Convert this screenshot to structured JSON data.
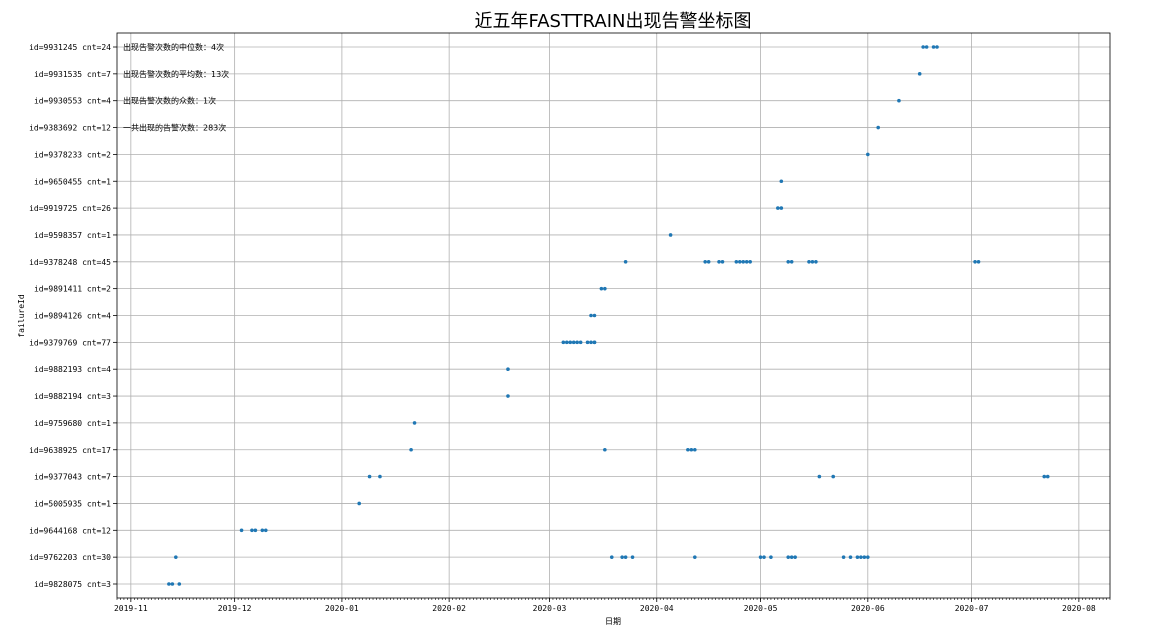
{
  "chart_data": {
    "type": "scatter",
    "title": "近五年FASTTRAIN出现告警坐标图",
    "xlabel": "日期",
    "ylabel": "failureId",
    "grid": true,
    "xlim": [
      "2019-10-28",
      "2020-08-10"
    ],
    "x_ticks": [
      "2019-11",
      "2019-12",
      "2020-01",
      "2020-02",
      "2020-03",
      "2020-04",
      "2020-05",
      "2020-06",
      "2020-07",
      "2020-08"
    ],
    "categories": [
      "id=9828075 cnt=3",
      "id=9762203 cnt=30",
      "id=9644168 cnt=12",
      "id=5005935 cnt=1",
      "id=9377043 cnt=7",
      "id=9638925 cnt=17",
      "id=9759680 cnt=1",
      "id=9882194 cnt=3",
      "id=9882193 cnt=4",
      "id=9379769 cnt=77",
      "id=9894126 cnt=4",
      "id=9891411 cnt=2",
      "id=9378248 cnt=45",
      "id=9598357 cnt=1",
      "id=9919725 cnt=26",
      "id=9650455 cnt=1",
      "id=9378233 cnt=2",
      "id=9383692 cnt=12",
      "id=9930553 cnt=4",
      "id=9931535 cnt=7",
      "id=9931245 cnt=24"
    ],
    "points": [
      {
        "x": "2019-11-12",
        "y": "id=9828075 cnt=3"
      },
      {
        "x": "2019-11-13",
        "y": "id=9828075 cnt=3"
      },
      {
        "x": "2019-11-15",
        "y": "id=9828075 cnt=3"
      },
      {
        "x": "2019-11-14",
        "y": "id=9762203 cnt=30"
      },
      {
        "x": "2020-03-19",
        "y": "id=9762203 cnt=30"
      },
      {
        "x": "2020-03-22",
        "y": "id=9762203 cnt=30"
      },
      {
        "x": "2020-03-23",
        "y": "id=9762203 cnt=30"
      },
      {
        "x": "2020-03-25",
        "y": "id=9762203 cnt=30"
      },
      {
        "x": "2020-04-12",
        "y": "id=9762203 cnt=30"
      },
      {
        "x": "2020-05-01",
        "y": "id=9762203 cnt=30"
      },
      {
        "x": "2020-05-02",
        "y": "id=9762203 cnt=30"
      },
      {
        "x": "2020-05-04",
        "y": "id=9762203 cnt=30"
      },
      {
        "x": "2020-05-09",
        "y": "id=9762203 cnt=30"
      },
      {
        "x": "2020-05-10",
        "y": "id=9762203 cnt=30"
      },
      {
        "x": "2020-05-11",
        "y": "id=9762203 cnt=30"
      },
      {
        "x": "2020-05-25",
        "y": "id=9762203 cnt=30"
      },
      {
        "x": "2020-05-27",
        "y": "id=9762203 cnt=30"
      },
      {
        "x": "2020-05-29",
        "y": "id=9762203 cnt=30"
      },
      {
        "x": "2020-05-30",
        "y": "id=9762203 cnt=30"
      },
      {
        "x": "2020-05-31",
        "y": "id=9762203 cnt=30"
      },
      {
        "x": "2020-06-01",
        "y": "id=9762203 cnt=30"
      },
      {
        "x": "2019-12-03",
        "y": "id=9644168 cnt=12"
      },
      {
        "x": "2019-12-06",
        "y": "id=9644168 cnt=12"
      },
      {
        "x": "2019-12-07",
        "y": "id=9644168 cnt=12"
      },
      {
        "x": "2019-12-09",
        "y": "id=9644168 cnt=12"
      },
      {
        "x": "2019-12-10",
        "y": "id=9644168 cnt=12"
      },
      {
        "x": "2020-01-06",
        "y": "id=5005935 cnt=1"
      },
      {
        "x": "2020-01-09",
        "y": "id=9377043 cnt=7"
      },
      {
        "x": "2020-01-12",
        "y": "id=9377043 cnt=7"
      },
      {
        "x": "2020-05-18",
        "y": "id=9377043 cnt=7"
      },
      {
        "x": "2020-05-22",
        "y": "id=9377043 cnt=7"
      },
      {
        "x": "2020-07-22",
        "y": "id=9377043 cnt=7"
      },
      {
        "x": "2020-07-23",
        "y": "id=9377043 cnt=7"
      },
      {
        "x": "2020-01-21",
        "y": "id=9638925 cnt=17"
      },
      {
        "x": "2020-03-17",
        "y": "id=9638925 cnt=17"
      },
      {
        "x": "2020-04-10",
        "y": "id=9638925 cnt=17"
      },
      {
        "x": "2020-04-11",
        "y": "id=9638925 cnt=17"
      },
      {
        "x": "2020-04-12",
        "y": "id=9638925 cnt=17"
      },
      {
        "x": "2020-01-22",
        "y": "id=9759680 cnt=1"
      },
      {
        "x": "2020-02-18",
        "y": "id=9882194 cnt=3"
      },
      {
        "x": "2020-02-18",
        "y": "id=9882193 cnt=4"
      },
      {
        "x": "2020-03-05",
        "y": "id=9379769 cnt=77"
      },
      {
        "x": "2020-03-06",
        "y": "id=9379769 cnt=77"
      },
      {
        "x": "2020-03-07",
        "y": "id=9379769 cnt=77"
      },
      {
        "x": "2020-03-08",
        "y": "id=9379769 cnt=77"
      },
      {
        "x": "2020-03-09",
        "y": "id=9379769 cnt=77"
      },
      {
        "x": "2020-03-10",
        "y": "id=9379769 cnt=77"
      },
      {
        "x": "2020-03-12",
        "y": "id=9379769 cnt=77"
      },
      {
        "x": "2020-03-13",
        "y": "id=9379769 cnt=77"
      },
      {
        "x": "2020-03-14",
        "y": "id=9379769 cnt=77"
      },
      {
        "x": "2020-03-14",
        "y": "id=9379769 cnt=77"
      },
      {
        "x": "2020-03-13",
        "y": "id=9894126 cnt=4"
      },
      {
        "x": "2020-03-14",
        "y": "id=9894126 cnt=4"
      },
      {
        "x": "2020-03-16",
        "y": "id=9891411 cnt=2"
      },
      {
        "x": "2020-03-17",
        "y": "id=9891411 cnt=2"
      },
      {
        "x": "2020-03-23",
        "y": "id=9378248 cnt=45"
      },
      {
        "x": "2020-04-15",
        "y": "id=9378248 cnt=45"
      },
      {
        "x": "2020-04-16",
        "y": "id=9378248 cnt=45"
      },
      {
        "x": "2020-04-19",
        "y": "id=9378248 cnt=45"
      },
      {
        "x": "2020-04-20",
        "y": "id=9378248 cnt=45"
      },
      {
        "x": "2020-04-24",
        "y": "id=9378248 cnt=45"
      },
      {
        "x": "2020-04-25",
        "y": "id=9378248 cnt=45"
      },
      {
        "x": "2020-04-26",
        "y": "id=9378248 cnt=45"
      },
      {
        "x": "2020-04-27",
        "y": "id=9378248 cnt=45"
      },
      {
        "x": "2020-04-28",
        "y": "id=9378248 cnt=45"
      },
      {
        "x": "2020-05-09",
        "y": "id=9378248 cnt=45"
      },
      {
        "x": "2020-05-10",
        "y": "id=9378248 cnt=45"
      },
      {
        "x": "2020-05-15",
        "y": "id=9378248 cnt=45"
      },
      {
        "x": "2020-05-16",
        "y": "id=9378248 cnt=45"
      },
      {
        "x": "2020-05-17",
        "y": "id=9378248 cnt=45"
      },
      {
        "x": "2020-07-02",
        "y": "id=9378248 cnt=45"
      },
      {
        "x": "2020-07-03",
        "y": "id=9378248 cnt=45"
      },
      {
        "x": "2020-04-05",
        "y": "id=9598357 cnt=1"
      },
      {
        "x": "2020-05-06",
        "y": "id=9919725 cnt=26"
      },
      {
        "x": "2020-05-07",
        "y": "id=9919725 cnt=26"
      },
      {
        "x": "2020-05-07",
        "y": "id=9650455 cnt=1"
      },
      {
        "x": "2020-06-01",
        "y": "id=9378233 cnt=2"
      },
      {
        "x": "2020-06-04",
        "y": "id=9383692 cnt=12"
      },
      {
        "x": "2020-06-10",
        "y": "id=9930553 cnt=4"
      },
      {
        "x": "2020-06-16",
        "y": "id=9931535 cnt=7"
      },
      {
        "x": "2020-06-17",
        "y": "id=9931245 cnt=24"
      },
      {
        "x": "2020-06-18",
        "y": "id=9931245 cnt=24"
      },
      {
        "x": "2020-06-20",
        "y": "id=9931245 cnt=24"
      },
      {
        "x": "2020-06-21",
        "y": "id=9931245 cnt=24"
      }
    ],
    "annotations": [
      "出现告警次数的中位数：4次",
      "出现告警次数的平均数：13次",
      "出现告警次数的众数：1次",
      "一共出现的告警次数：283次"
    ],
    "marker_color": "#1f77b4"
  }
}
